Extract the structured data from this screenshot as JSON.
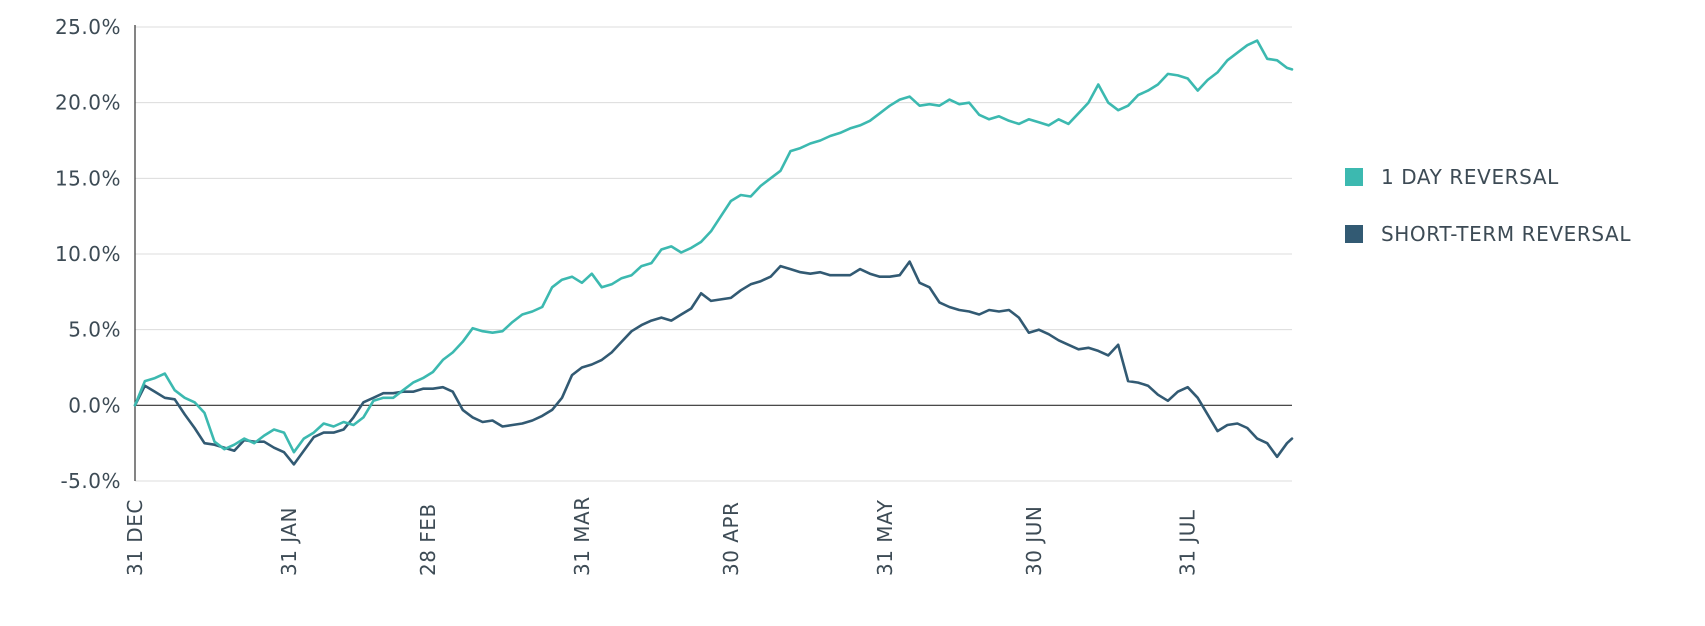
{
  "chart_data": {
    "type": "line",
    "title": "",
    "xlabel": "",
    "ylabel": "",
    "ylim": [
      -5,
      25
    ],
    "y_ticks": [
      25,
      20,
      15,
      10,
      5,
      0,
      -5
    ],
    "y_tick_labels": [
      "25.0%",
      "20.0%",
      "15.0%",
      "10.0%",
      "5.0%",
      "0.0%",
      "-5.0%"
    ],
    "x_range": [
      0,
      233
    ],
    "x_ticks": [
      0,
      31,
      59,
      90,
      120,
      151,
      181,
      212
    ],
    "x_tick_labels": [
      "31 DEC",
      "31 JAN",
      "28 FEB",
      "31 MAR",
      "30 APR",
      "31 MAY",
      "30 JUN",
      "31 JUL"
    ],
    "grid": true,
    "legend_position": "right",
    "series": [
      {
        "name": "1 DAY REVERSAL",
        "color": "#3cb9b0",
        "x": [
          0,
          2,
          4,
          6,
          8,
          10,
          12,
          14,
          16,
          18,
          20,
          22,
          24,
          26,
          28,
          30,
          32,
          34,
          36,
          38,
          40,
          42,
          44,
          46,
          48,
          50,
          52,
          54,
          56,
          58,
          60,
          62,
          64,
          66,
          68,
          70,
          72,
          74,
          76,
          78,
          80,
          82,
          84,
          86,
          88,
          90,
          92,
          94,
          96,
          98,
          100,
          102,
          104,
          106,
          108,
          110,
          112,
          114,
          116,
          118,
          120,
          122,
          124,
          126,
          128,
          130,
          132,
          134,
          136,
          138,
          140,
          142,
          144,
          146,
          148,
          150,
          152,
          154,
          156,
          158,
          160,
          162,
          164,
          166,
          168,
          170,
          172,
          174,
          176,
          178,
          180,
          182,
          184,
          186,
          188,
          190,
          192,
          194,
          196,
          198,
          200,
          202,
          204,
          206,
          208,
          210,
          212,
          214,
          216,
          218,
          220,
          222,
          224,
          226,
          228,
          230,
          232,
          233
        ],
        "values": [
          0.0,
          1.6,
          1.8,
          2.1,
          1.0,
          0.5,
          0.2,
          -0.5,
          -2.4,
          -2.9,
          -2.6,
          -2.2,
          -2.5,
          -2.0,
          -1.6,
          -1.8,
          -3.1,
          -2.2,
          -1.8,
          -1.2,
          -1.4,
          -1.1,
          -1.3,
          -0.8,
          0.3,
          0.5,
          0.5,
          1.0,
          1.5,
          1.8,
          2.2,
          3.0,
          3.5,
          4.2,
          5.1,
          4.9,
          4.8,
          4.9,
          5.5,
          6.0,
          6.2,
          6.5,
          7.8,
          8.3,
          8.5,
          8.1,
          8.7,
          7.8,
          8.0,
          8.4,
          8.6,
          9.2,
          9.4,
          10.3,
          10.5,
          10.1,
          10.4,
          10.8,
          11.5,
          12.5,
          13.5,
          13.9,
          13.8,
          14.5,
          15.0,
          15.5,
          16.8,
          17.0,
          17.3,
          17.5,
          17.8,
          18.0,
          18.3,
          18.5,
          18.8,
          19.3,
          19.8,
          20.2,
          20.4,
          19.8,
          19.9,
          19.8,
          20.2,
          19.9,
          20.0,
          19.2,
          18.9,
          19.1,
          18.8,
          18.6,
          18.9,
          18.7,
          18.5,
          18.9,
          18.6,
          19.3,
          20.0,
          21.2,
          20.0,
          19.5,
          19.8,
          20.5,
          20.8,
          21.2,
          21.9,
          21.8,
          21.6,
          20.8,
          21.5,
          22.0,
          22.8,
          23.3,
          23.8,
          24.1,
          22.9,
          22.8,
          22.3,
          22.2
        ]
      },
      {
        "name": "SHORT-TERM REVERSAL",
        "color": "#325a73",
        "x": [
          0,
          2,
          4,
          6,
          8,
          10,
          12,
          14,
          16,
          18,
          20,
          22,
          24,
          26,
          28,
          30,
          32,
          34,
          36,
          38,
          40,
          42,
          44,
          46,
          48,
          50,
          52,
          54,
          56,
          58,
          60,
          62,
          64,
          66,
          68,
          70,
          72,
          74,
          76,
          78,
          80,
          82,
          84,
          86,
          88,
          90,
          92,
          94,
          96,
          98,
          100,
          102,
          104,
          106,
          108,
          110,
          112,
          114,
          116,
          118,
          120,
          122,
          124,
          126,
          128,
          130,
          132,
          134,
          136,
          138,
          140,
          142,
          144,
          146,
          148,
          150,
          152,
          154,
          156,
          158,
          160,
          162,
          164,
          166,
          168,
          170,
          172,
          174,
          176,
          178,
          180,
          182,
          184,
          186,
          188,
          190,
          192,
          194,
          196,
          198,
          200,
          202,
          204,
          206,
          208,
          210,
          212,
          214,
          216,
          218,
          220,
          222,
          224,
          226,
          228,
          230,
          232,
          233
        ],
        "values": [
          0.0,
          1.3,
          0.9,
          0.5,
          0.4,
          -0.6,
          -1.5,
          -2.5,
          -2.6,
          -2.8,
          -3.0,
          -2.3,
          -2.4,
          -2.4,
          -2.8,
          -3.1,
          -3.9,
          -3.0,
          -2.1,
          -1.8,
          -1.8,
          -1.6,
          -0.8,
          0.2,
          0.5,
          0.8,
          0.8,
          0.9,
          0.9,
          1.1,
          1.1,
          1.2,
          0.9,
          -0.3,
          -0.8,
          -1.1,
          -1.0,
          -1.4,
          -1.3,
          -1.2,
          -1.0,
          -0.7,
          -0.3,
          0.5,
          2.0,
          2.5,
          2.7,
          3.0,
          3.5,
          4.2,
          4.9,
          5.3,
          5.6,
          5.8,
          5.6,
          6.0,
          6.4,
          7.4,
          6.9,
          7.0,
          7.1,
          7.6,
          8.0,
          8.2,
          8.5,
          9.2,
          9.0,
          8.8,
          8.7,
          8.8,
          8.6,
          8.6,
          8.6,
          9.0,
          8.7,
          8.5,
          8.5,
          8.6,
          9.5,
          8.1,
          7.8,
          6.8,
          6.5,
          6.3,
          6.2,
          6.0,
          6.3,
          6.2,
          6.3,
          5.8,
          4.8,
          5.0,
          4.7,
          4.3,
          4.0,
          3.7,
          3.8,
          3.6,
          3.3,
          4.0,
          1.6,
          1.5,
          1.3,
          0.7,
          0.3,
          0.9,
          1.2,
          0.5,
          -0.6,
          -1.7,
          -1.3,
          -1.2,
          -1.5,
          -2.2,
          -2.5,
          -3.4,
          -2.5,
          -2.2
        ]
      }
    ]
  }
}
